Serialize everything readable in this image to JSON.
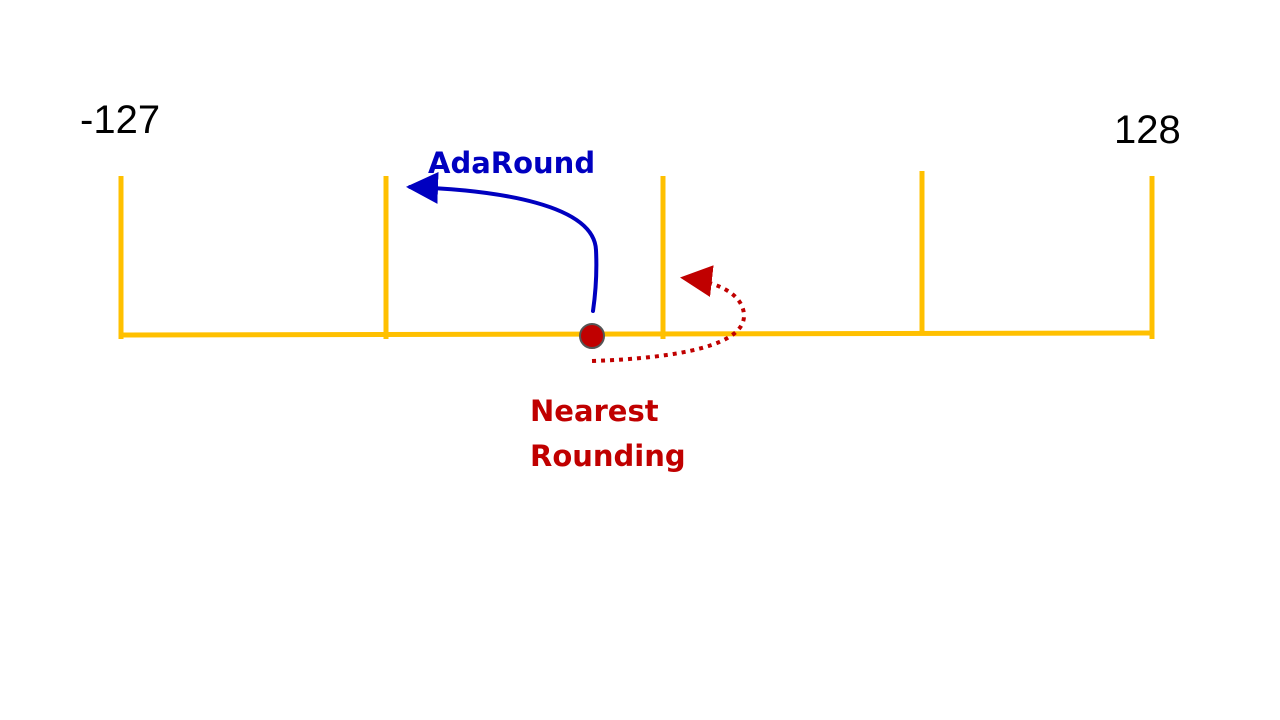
{
  "labels": {
    "min_value": "-127",
    "max_value": "128",
    "adaround": "AdaRound",
    "nearest_line1": "Nearest",
    "nearest_line2": "Rounding"
  },
  "colors": {
    "axis": "#FFC000",
    "adaround": "#0000C0",
    "nearest": "#C00000",
    "point_fill": "#C00000",
    "point_stroke": "#555555",
    "text": "#000000"
  }
}
